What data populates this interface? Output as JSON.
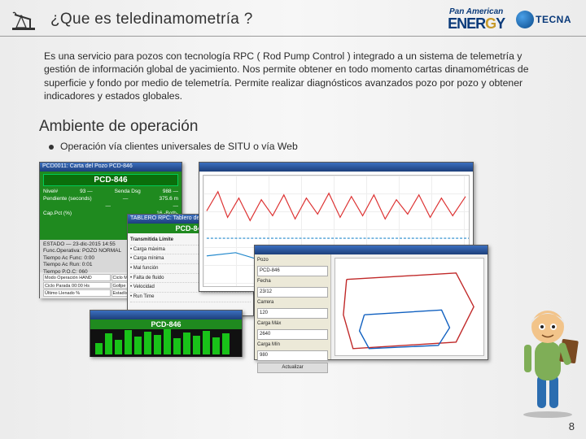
{
  "header": {
    "title": "¿Que es teledinamometría ?",
    "logo_pae": {
      "line1": "Pan American",
      "line2a": "ENER",
      "line2b": "G",
      "line2c": "Y"
    },
    "logo_tecna": "TECNA"
  },
  "paragraph": "Es una servicio para pozos con tecnología RPC ( Rod Pump Control ) integrado a un sistema de telemetría y gestión de información global de yacimiento. Nos permite obtener en todo momento cartas dinamométricas de superficie y fondo por medio de telemetría. Permite realizar diagnósticos avanzados pozo por pozo y obtener indicadores y estados globales.",
  "section2": {
    "title": "Ambiente de operación",
    "bullet": "Operación vía clientes universales de SITU o vía Web"
  },
  "green_win": {
    "titlebar": "PCD0011: Carta del Pozo PCD-846",
    "pcd": "PCD-846",
    "rows": [
      [
        "Nivel#",
        "93 —",
        "Senda Dsg",
        "988 —"
      ],
      [
        "Pendiente (seconds)",
        "—",
        "375.6 m"
      ],
      [
        "",
        "—",
        "—"
      ],
      [
        "Cap.Pct (%)",
        "",
        "16 -Both-"
      ]
    ],
    "mid_rows": [
      "ESTADO — 23-dic-2015 14:55",
      "Func.Operativa: POZO NORMAL",
      "Tiempo Ac Func: 0:00",
      "Tiempo Ac Run: 0:01",
      "Tiempo P.O.C: 060"
    ],
    "bot_cells": [
      "Modo Operación HAND",
      "Ciclo Marcha 00:07 Hs",
      "Ciclo Parada 00:00 Hs",
      "Gollpe Ultimo M",
      "Último Llenado %",
      "Estadística de Pozo"
    ]
  },
  "overlay_win": {
    "titlebar": "TABLERO RPC: Tablero del RPC",
    "pcd": "PCD-846",
    "cols": "Transmitida   Límite",
    "rows": [
      "Carga máxima",
      "Carga mínima",
      "Mal función",
      "Falta de fluido",
      "Velocidad",
      "Run Time"
    ]
  },
  "bar_win": {
    "pcd": "PCD-846",
    "heights": [
      14,
      26,
      18,
      30,
      22,
      28,
      24,
      31,
      20,
      27,
      23,
      29,
      21,
      26
    ]
  },
  "line_chart": {
    "titlebar": "",
    "x_range": [
      0,
      330
    ],
    "y_range": [
      0,
      138
    ],
    "series": [
      {
        "color": "#d33",
        "width": 1.2,
        "points": [
          [
            4,
            44
          ],
          [
            18,
            20
          ],
          [
            30,
            52
          ],
          [
            44,
            28
          ],
          [
            58,
            56
          ],
          [
            72,
            30
          ],
          [
            86,
            50
          ],
          [
            100,
            24
          ],
          [
            114,
            54
          ],
          [
            128,
            28
          ],
          [
            142,
            48
          ],
          [
            156,
            22
          ],
          [
            170,
            52
          ],
          [
            184,
            26
          ],
          [
            198,
            50
          ],
          [
            212,
            24
          ],
          [
            226,
            54
          ],
          [
            240,
            30
          ],
          [
            254,
            48
          ],
          [
            268,
            24
          ],
          [
            282,
            52
          ],
          [
            296,
            28
          ],
          [
            310,
            50
          ],
          [
            326,
            26
          ]
        ]
      },
      {
        "color": "#28c",
        "width": 1.2,
        "dash": "3 2",
        "points": [
          [
            4,
            78
          ],
          [
            330,
            78
          ]
        ]
      },
      {
        "color": "#28c",
        "width": 1.2,
        "points": [
          [
            4,
            100
          ],
          [
            40,
            96
          ],
          [
            80,
            108
          ],
          [
            120,
            98
          ],
          [
            160,
            110
          ],
          [
            200,
            96
          ],
          [
            240,
            106
          ],
          [
            280,
            98
          ],
          [
            326,
            104
          ]
        ]
      }
    ]
  },
  "dyna_win": {
    "titlebar": "",
    "side_labels": [
      "Pozo",
      "Fecha",
      "Carrera",
      "Carga Máx",
      "Carga Mín"
    ],
    "side_vals": [
      "PCD-846",
      "23/12",
      "120",
      "2640",
      "980"
    ],
    "btn": "Actualizar",
    "surface_color": "#c02828",
    "downhole_color": "#1060c0",
    "surface_loop": [
      [
        14,
        26
      ],
      [
        150,
        18
      ],
      [
        172,
        60
      ],
      [
        150,
        104
      ],
      [
        22,
        112
      ],
      [
        10,
        70
      ],
      [
        14,
        26
      ]
    ],
    "downhole_loop": [
      [
        36,
        70
      ],
      [
        132,
        64
      ],
      [
        142,
        86
      ],
      [
        128,
        108
      ],
      [
        42,
        112
      ],
      [
        30,
        90
      ],
      [
        36,
        70
      ]
    ]
  },
  "mascot_colors": {
    "skin": "#f2c48a",
    "hat": "#e8e8e8",
    "shirt": "#7fae57",
    "pants": "#2b6db0",
    "board": "#7a4a22"
  },
  "page_number": "8"
}
